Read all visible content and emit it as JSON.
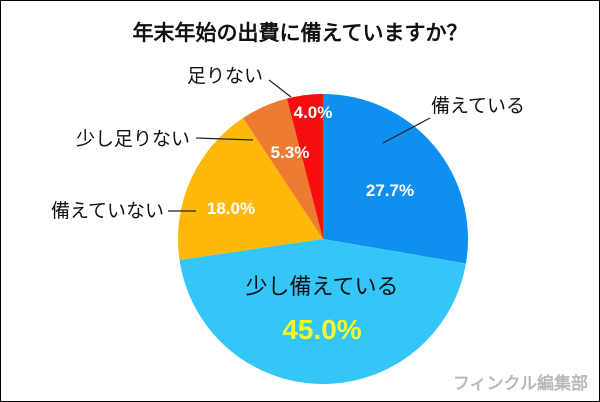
{
  "chart_data": {
    "type": "pie",
    "title": "年末年始の出費に備えていますか？",
    "unit": "%",
    "slices": [
      {
        "label": "備えている",
        "value": 27.7,
        "display": "27.7%",
        "color": "#0f8ff0"
      },
      {
        "label": "少し備えている",
        "value": 45.0,
        "display": "45.0%",
        "color": "#33c6f6"
      },
      {
        "label": "備えていない",
        "value": 18.0,
        "display": "18.0%",
        "color": "#fdb809"
      },
      {
        "label": "少し足りない",
        "value": 5.3,
        "display": "5.3%",
        "color": "#ed7c30"
      },
      {
        "label": "足りない",
        "value": 4.0,
        "display": "4.0%",
        "color": "#f70d0d"
      }
    ],
    "start_angle": "12 o'clock",
    "direction": "clockwise",
    "highlight_color": "#f6f62e"
  },
  "watermark": "フィンクル編集部"
}
